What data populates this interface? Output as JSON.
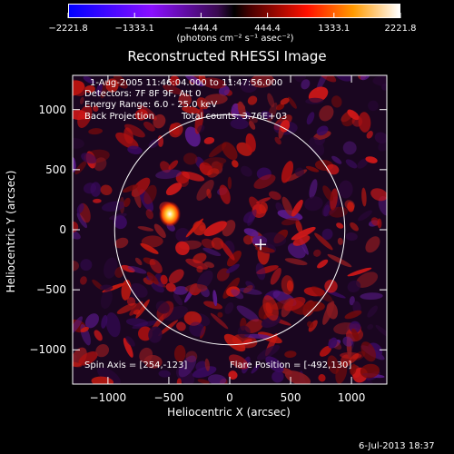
{
  "chart_data": {
    "type": "heatmap",
    "title": "Reconstructed RHESSI Image",
    "xlabel": "Heliocentric X (arcsec)",
    "ylabel": "Heliocentric Y (arcsec)",
    "xlim": [
      -1290,
      1290
    ],
    "ylim": [
      -1285,
      1285
    ],
    "xticks": [
      -1000,
      -500,
      0,
      500,
      1000
    ],
    "xtick_labels": [
      "−1000",
      "−500",
      "0",
      "500",
      "1000"
    ],
    "yticks": [
      1000,
      500,
      0,
      -500,
      -1000
    ],
    "ytick_labels": [
      "1000",
      "500",
      "0",
      "−500",
      "−1000"
    ],
    "colorbar": {
      "ticks": [
        -2221.8,
        -1333.1,
        -444.4,
        444.4,
        1333.1,
        2221.8
      ],
      "tick_labels": [
        "−2221.8",
        "−1333.1",
        "−444.4",
        "444.4",
        "1333.1",
        "2221.8"
      ],
      "unit_text": "(photons cm⁻² s⁻¹ asec⁻²)",
      "range": [
        -2221.8,
        2221.8
      ]
    },
    "annotations": {
      "time_range": "1-Aug-2005 11:46:04.000 to 11:47:56.000",
      "detectors": "Detectors: 7F 8F 9F, Att 0",
      "energy": "Energy Range: 6.0 - 25.0 keV",
      "method": "Back Projection",
      "counts": "Total counts: 3.76E+03",
      "spin_axis": "Spin Axis = [254,-123]",
      "flare_position": "Flare Position = [-492,130]"
    },
    "solar_disk": {
      "center": [
        0,
        0
      ],
      "radius": 945
    },
    "spin_axis_marker": [
      254,
      -123
    ],
    "flare_source": {
      "x": -492,
      "y": 130,
      "peak": 2221.8
    }
  },
  "footer": {
    "timestamp": "6-Jul-2013 18:37"
  },
  "colors": {
    "axes": "#ffffff",
    "disk_circle": "#ffffff"
  }
}
